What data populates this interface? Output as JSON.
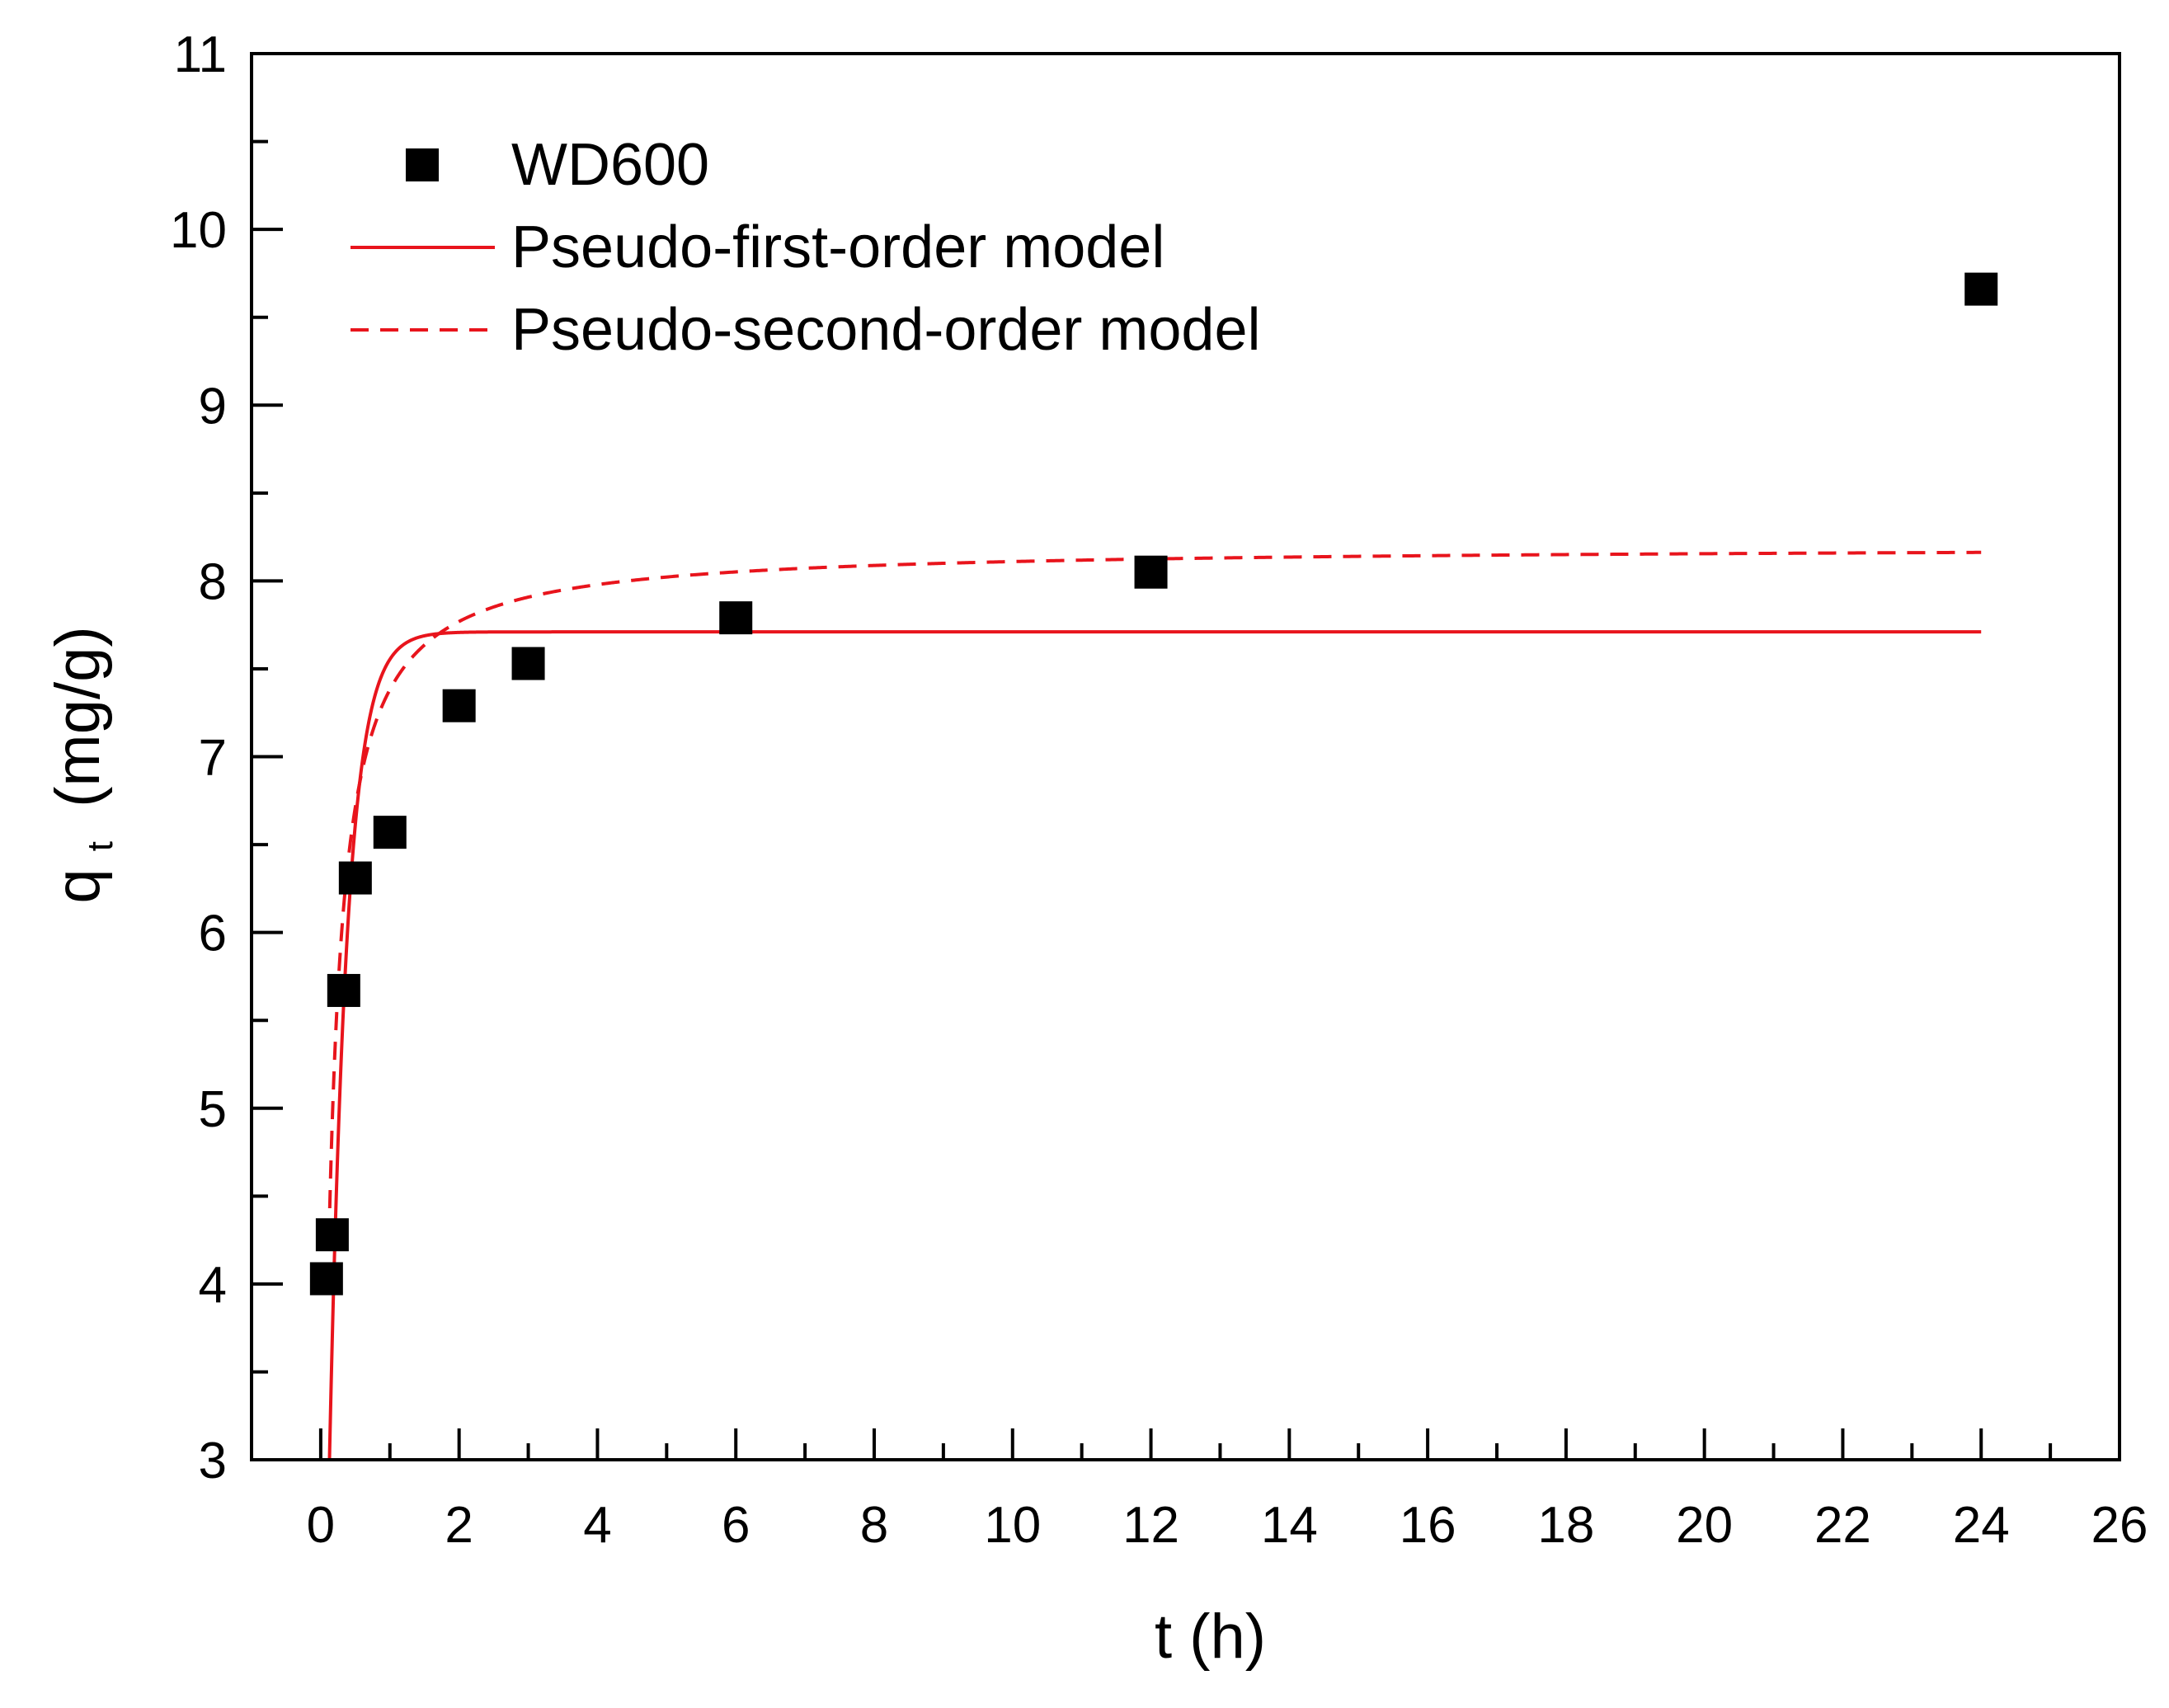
{
  "chart_data": {
    "type": "scatter",
    "title": "",
    "xlabel": "t (h)",
    "ylabel": {
      "main": "q",
      "sub": "t",
      "unit": "(mg/g)"
    },
    "xlim": [
      -1,
      26
    ],
    "ylim": [
      3,
      11
    ],
    "xticks": [
      0,
      2,
      4,
      6,
      8,
      10,
      12,
      14,
      16,
      18,
      20,
      22,
      24,
      26
    ],
    "yticks": [
      3,
      4,
      5,
      6,
      7,
      8,
      9,
      10,
      11
    ],
    "grid": false,
    "legend_position": "top-left",
    "series": [
      {
        "name": "WD600",
        "kind": "markers",
        "marker": "square",
        "color": "#000000",
        "x": [
          0.083,
          0.167,
          0.333,
          0.5,
          1,
          2,
          3,
          6,
          12,
          24
        ],
        "y": [
          4.03,
          4.28,
          5.67,
          6.31,
          6.57,
          7.29,
          7.53,
          7.79,
          8.05,
          9.66
        ]
      },
      {
        "name": "Pseudo-first-order model",
        "kind": "line",
        "style": "solid",
        "color": "#e8141c",
        "model": "first-order",
        "qe": 7.71,
        "k": 3.9,
        "x_range": [
          0.1,
          24
        ]
      },
      {
        "name": "Pseudo-second-order model",
        "kind": "line",
        "style": "dashed",
        "color": "#e8141c",
        "model": "second-order",
        "qe": 8.2,
        "k": 1.1,
        "x_range": [
          0.12,
          24
        ]
      }
    ]
  }
}
